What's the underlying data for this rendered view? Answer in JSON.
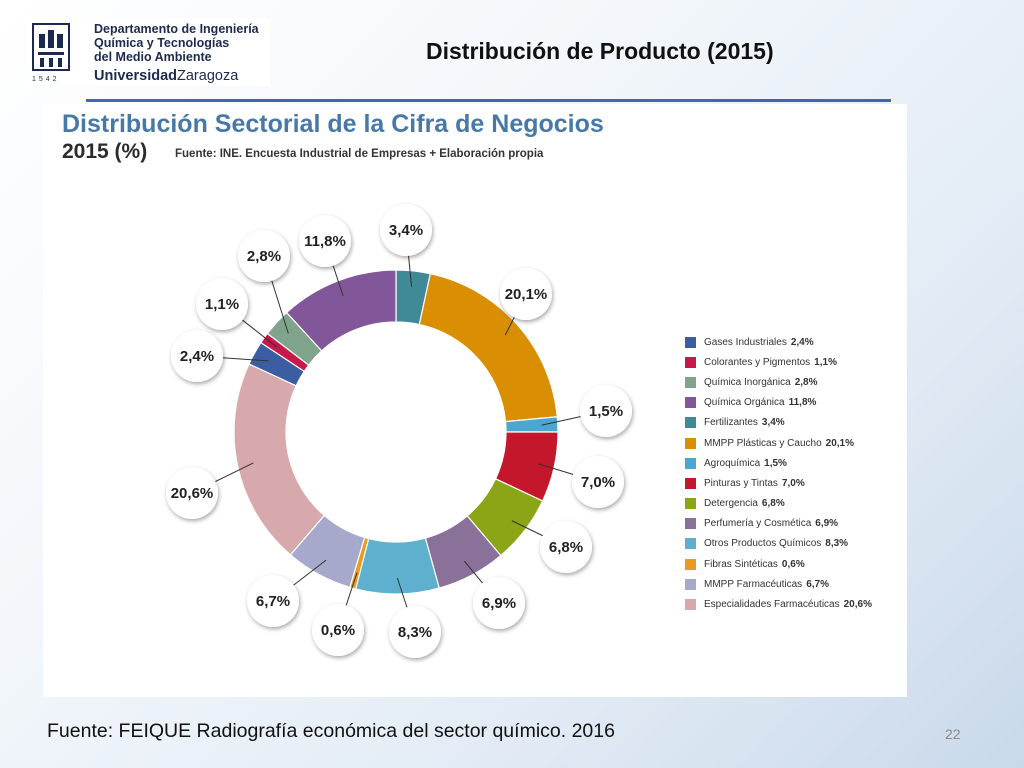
{
  "header": {
    "dept_line1": "Departamento de Ingeniería",
    "dept_line2": "Química y Tecnologías",
    "dept_line3": "del Medio Ambiente",
    "university_bold": "Universidad",
    "university_rest": "Zaragoza",
    "logo_year": "1542",
    "slide_title": "Distribución de Producto (2015)"
  },
  "footer": {
    "source": "Fuente: FEIQUE Radiografía económica del sector químico. 2016",
    "page_number": "22"
  },
  "chart_data": {
    "type": "pie",
    "subtype": "donut",
    "title": "Distribución Sectorial de la Cifra de Negocios",
    "subtitle": "2015 (%)",
    "source_note": "Fuente: INE. Encuesta Industrial de Empresas + Elaboración propia",
    "legend_placement": "right",
    "slices": [
      {
        "name": "Fertilizantes",
        "value": 3.4,
        "label": "3,4%",
        "color": "#3f8a96"
      },
      {
        "name": "MMPP Plásticas y Caucho",
        "value": 20.1,
        "label": "20,1%",
        "color": "#d98e04"
      },
      {
        "name": "Agroquímica",
        "value": 1.5,
        "label": "1,5%",
        "color": "#4aa7cf"
      },
      {
        "name": "Pinturas y Tintas",
        "value": 7.0,
        "label": "7,0%",
        "color": "#c4172c"
      },
      {
        "name": "Detergencia",
        "value": 6.8,
        "label": "6,8%",
        "color": "#8aa515"
      },
      {
        "name": "Perfumería y Cosmética",
        "value": 6.9,
        "label": "6,9%",
        "color": "#8a7199"
      },
      {
        "name": "Otros Productos Químicos",
        "value": 8.3,
        "label": "8,3%",
        "color": "#5fb0cf"
      },
      {
        "name": "Fibras Sintéticas",
        "value": 0.6,
        "label": "0,6%",
        "color": "#ea9a1e"
      },
      {
        "name": "MMPP Farmacéuticas",
        "value": 6.7,
        "label": "6,7%",
        "color": "#a7a9cc"
      },
      {
        "name": "Especialidades Farmacéuticas",
        "value": 20.6,
        "label": "20,6%",
        "color": "#d7a9ac"
      },
      {
        "name": "Gases Industriales",
        "value": 2.4,
        "label": "2,4%",
        "color": "#3b5ea2"
      },
      {
        "name": "Colorantes y Pigmentos",
        "value": 1.1,
        "label": "1,1%",
        "color": "#c8174a"
      },
      {
        "name": "Química Inorgánica",
        "value": 2.8,
        "label": "2,8%",
        "color": "#7fa48b"
      },
      {
        "name": "Química Orgánica",
        "value": 11.8,
        "label": "11,8%",
        "color": "#82579a"
      }
    ],
    "legend": [
      {
        "name": "Gases Industriales",
        "label": "2,4%",
        "color": "#3b5ea2"
      },
      {
        "name": "Colorantes y Pigmentos",
        "label": "1,1%",
        "color": "#c8174a"
      },
      {
        "name": "Química Inorgánica",
        "label": "2,8%",
        "color": "#7fa48b"
      },
      {
        "name": "Química Orgánica",
        "label": "11,8%",
        "color": "#82579a"
      },
      {
        "name": "Fertilizantes",
        "label": "3,4%",
        "color": "#3f8a96"
      },
      {
        "name": "MMPP Plásticas y Caucho",
        "label": "20,1%",
        "color": "#d98e04"
      },
      {
        "name": "Agroquímica",
        "label": "1,5%",
        "color": "#4aa7cf"
      },
      {
        "name": "Pinturas y Tintas",
        "label": "7,0%",
        "color": "#c4172c"
      },
      {
        "name": "Detergencia",
        "label": "6,8%",
        "color": "#8aa515"
      },
      {
        "name": "Perfumería y Cosmética",
        "label": "6,9%",
        "color": "#8a7199"
      },
      {
        "name": "Otros Productos Químicos",
        "label": "8,3%",
        "color": "#5fb0cf"
      },
      {
        "name": "Fibras Sintéticas",
        "label": "0,6%",
        "color": "#ea9a1e"
      },
      {
        "name": "MMPP Farmacéuticas",
        "label": "6,7%",
        "color": "#a7a9cc"
      },
      {
        "name": "Especialidades Farmacéuticas",
        "label": "20,6%",
        "color": "#d7a9ac"
      }
    ]
  }
}
